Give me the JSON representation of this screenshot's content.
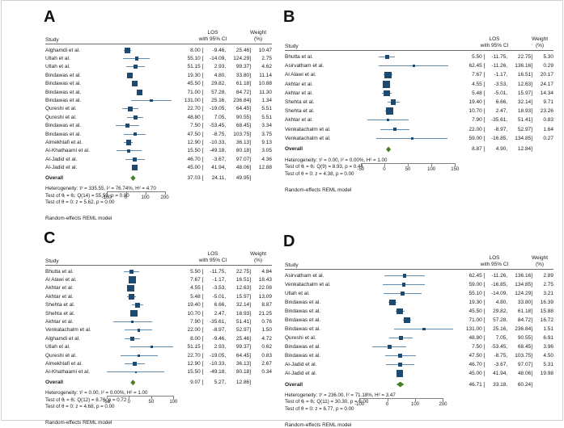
{
  "colors": {
    "square": "#1c4a70",
    "ci_line": "#5f8cb0",
    "diamond": "#4a7e26",
    "rule": "#6a6a6a",
    "frame": "#d2d2d2"
  },
  "chart_data": [
    {
      "panel_label": "A",
      "type": "forest",
      "col_headers": {
        "study": "Study",
        "effect_line1": "LOS",
        "effect_line2": "with 95% CI",
        "weight_line1": "Weight",
        "weight_line2": "(%)"
      },
      "x_ticks": [
        -100,
        0,
        100,
        200
      ],
      "x_range": [
        -115,
        252
      ],
      "studies": [
        {
          "label": "Alghamdi et al.",
          "est": 8.0,
          "lo": -9.46,
          "hi": 25.46,
          "weight": 10.47
        },
        {
          "label": "Ullah et al.",
          "est": 55.1,
          "lo": -14.09,
          "hi": 124.29,
          "weight": 2.75
        },
        {
          "label": "Ullah et al.",
          "est": 51.15,
          "lo": 2.93,
          "hi": 99.37,
          "weight": 4.62
        },
        {
          "label": "Bindawas et al.",
          "est": 19.3,
          "lo": 4.8,
          "hi": 33.8,
          "weight": 11.14
        },
        {
          "label": "Bindawas et al.",
          "est": 45.5,
          "lo": 29.82,
          "hi": 61.18,
          "weight": 10.88
        },
        {
          "label": "Bindawas et al.",
          "est": 71.0,
          "lo": 57.28,
          "hi": 84.72,
          "weight": 11.3
        },
        {
          "label": "Bindawas et al.",
          "est": 131.0,
          "lo": 25.16,
          "hi": 236.84,
          "weight": 1.34
        },
        {
          "label": "Qureshi et al.",
          "est": 22.7,
          "lo": -19.05,
          "hi": 64.45,
          "weight": 5.51
        },
        {
          "label": "Qureshi et al.",
          "est": 48.8,
          "lo": 7.05,
          "hi": 90.55,
          "weight": 5.51
        },
        {
          "label": "Bindawas et al.",
          "est": 7.5,
          "lo": -53.45,
          "hi": 68.45,
          "weight": 3.34
        },
        {
          "label": "Bindawas et al.",
          "est": 47.5,
          "lo": -8.75,
          "hi": 103.75,
          "weight": 3.75
        },
        {
          "label": "Almekhlafi et al.",
          "est": 12.9,
          "lo": -10.33,
          "hi": 36.13,
          "weight": 9.13
        },
        {
          "label": "Al-Khathaami et al.",
          "est": 15.5,
          "lo": -49.18,
          "hi": 80.18,
          "weight": 3.05
        },
        {
          "label": "Al-Jadid et al.",
          "est": 46.7,
          "lo": -3.67,
          "hi": 97.07,
          "weight": 4.36
        },
        {
          "label": "Al-Jadid et al.",
          "est": 45.0,
          "lo": 41.94,
          "hi": 48.06,
          "weight": 12.88
        }
      ],
      "overall": {
        "label": "Overall",
        "est": 37.03,
        "lo": 24.11,
        "hi": 49.95
      },
      "stats": [
        "Heterogeneity: τ² = 335.55, I² = 76.74%, H² = 4.70",
        "Test of θᵢ = θⱼ: Q(14) = 55.59, p = 0.00",
        "Test of θ = 0: z = 5.62, p = 0.00"
      ],
      "footnote": "Random-effects REML model"
    },
    {
      "panel_label": "B",
      "type": "forest",
      "col_headers": {
        "study": "Study",
        "effect_line1": "LOS",
        "effect_line2": "with 95% CI",
        "weight_line1": "Weight",
        "weight_line2": "(%)"
      },
      "x_ticks": [
        -50,
        0,
        50,
        100,
        150
      ],
      "x_range": [
        -60,
        153
      ],
      "studies": [
        {
          "label": "Bhutta et al.",
          "est": 5.5,
          "lo": -11.75,
          "hi": 22.75,
          "weight": 5.3
        },
        {
          "label": "Asirvatham et al.",
          "est": 62.45,
          "lo": -11.26,
          "hi": 136.16,
          "weight": 0.29
        },
        {
          "label": "Al Alawi et al.",
          "est": 7.67,
          "lo": -1.17,
          "hi": 16.51,
          "weight": 20.17
        },
        {
          "label": "Akhtar et al.",
          "est": 4.55,
          "lo": -3.53,
          "hi": 12.63,
          "weight": 24.17
        },
        {
          "label": "Akhtar et al.",
          "est": 5.48,
          "lo": -5.01,
          "hi": 15.97,
          "weight": 14.34
        },
        {
          "label": "Shehta et al.",
          "est": 19.4,
          "lo": 6.66,
          "hi": 32.14,
          "weight": 9.71
        },
        {
          "label": "Shehta et al.",
          "est": 10.7,
          "lo": 2.47,
          "hi": 18.93,
          "weight": 23.26
        },
        {
          "label": "Akhtar et al.",
          "est": 7.9,
          "lo": -35.61,
          "hi": 51.41,
          "weight": 0.83
        },
        {
          "label": "Venkatachalm et al.",
          "est": 22.0,
          "lo": -8.97,
          "hi": 52.97,
          "weight": 1.64
        },
        {
          "label": "Venkatachalm et al.",
          "est": 59.0,
          "lo": -16.85,
          "hi": 134.85,
          "weight": 0.27
        }
      ],
      "overall": {
        "label": "Overall",
        "est": 8.87,
        "lo": 4.9,
        "hi": 12.84
      },
      "stats": [
        "Heterogeneity: τ² = 0.00, I² = 0.00%, H² = 1.00",
        "Test of θᵢ = θⱼ: Q(9) = 8.93, p = 0.44",
        "Test of θ = 0: z = 4.38, p = 0.00"
      ],
      "footnote": "Random-effects REML model"
    },
    {
      "panel_label": "C",
      "type": "forest",
      "col_headers": {
        "study": "Study",
        "effect_line1": "LOS",
        "effect_line2": "with 95% CI",
        "weight_line1": "Weight",
        "weight_line2": "(%)"
      },
      "x_ticks": [
        -50,
        0,
        50,
        100
      ],
      "x_range": [
        -57,
        103
      ],
      "studies": [
        {
          "label": "Bhutta et al.",
          "est": 5.5,
          "lo": -11.75,
          "hi": 22.75,
          "weight": 4.84
        },
        {
          "label": "Al Alawi et al.",
          "est": 7.67,
          "lo": -1.17,
          "hi": 16.51,
          "weight": 18.43
        },
        {
          "label": "Akhtar et al.",
          "est": 4.55,
          "lo": -3.53,
          "hi": 12.63,
          "weight": 22.08
        },
        {
          "label": "Akhtar et al.",
          "est": 5.48,
          "lo": -5.01,
          "hi": 15.97,
          "weight": 13.09
        },
        {
          "label": "Shehta et al.",
          "est": 19.4,
          "lo": 6.66,
          "hi": 32.14,
          "weight": 8.87
        },
        {
          "label": "Shehta et al.",
          "est": 10.7,
          "lo": 2.47,
          "hi": 18.93,
          "weight": 21.25
        },
        {
          "label": "Akhtar et al.",
          "est": 7.9,
          "lo": -35.61,
          "hi": 51.41,
          "weight": 0.76
        },
        {
          "label": "Venkatachalm et al.",
          "est": 22.0,
          "lo": -8.97,
          "hi": 52.97,
          "weight": 1.5
        },
        {
          "label": "Alghamdi et al.",
          "est": 8.0,
          "lo": -9.46,
          "hi": 25.46,
          "weight": 4.72
        },
        {
          "label": "Ullah et al.",
          "est": 51.15,
          "lo": 2.93,
          "hi": 99.37,
          "weight": 0.62
        },
        {
          "label": "Qureshi et al.",
          "est": 22.7,
          "lo": -19.05,
          "hi": 64.45,
          "weight": 0.83
        },
        {
          "label": "Almekhlafi et al.",
          "est": 12.9,
          "lo": -10.33,
          "hi": 36.13,
          "weight": 2.67
        },
        {
          "label": "Al-Khathaami et al.",
          "est": 15.5,
          "lo": -49.18,
          "hi": 80.18,
          "weight": 0.34
        }
      ],
      "overall": {
        "label": "Overall",
        "est": 9.07,
        "lo": 5.27,
        "hi": 12.86
      },
      "stats": [
        "Heterogeneity: τ² = 0.00, I² = 0.00%, H² = 1.00",
        "Test of θᵢ = θⱼ: Q(12) = 8.76, p = 0.72",
        "Test of θ = 0: z = 4.68, p = 0.00"
      ],
      "footnote": "Random-effects REML model"
    },
    {
      "panel_label": "D",
      "type": "forest",
      "col_headers": {
        "study": "Study",
        "effect_line1": "LOS",
        "effect_line2": "with 95% CI",
        "weight_line1": "Weight",
        "weight_line2": "(%)"
      },
      "x_ticks": [
        -100,
        0,
        100,
        200
      ],
      "x_range": [
        -112,
        248
      ],
      "studies": [
        {
          "label": "Asirvatham et al.",
          "est": 62.45,
          "lo": -11.26,
          "hi": 136.16,
          "weight": 2.89
        },
        {
          "label": "Venkatachalm et al.",
          "est": 59.0,
          "lo": -16.85,
          "hi": 134.85,
          "weight": 2.75
        },
        {
          "label": "Ullah et al.",
          "est": 55.1,
          "lo": -14.09,
          "hi": 124.29,
          "weight": 3.21
        },
        {
          "label": "Bindawas et al.",
          "est": 19.3,
          "lo": 4.8,
          "hi": 33.8,
          "weight": 16.39
        },
        {
          "label": "Bindawas et al.",
          "est": 45.5,
          "lo": 29.82,
          "hi": 61.18,
          "weight": 15.88
        },
        {
          "label": "Bindawas et al.",
          "est": 71.0,
          "lo": 57.28,
          "hi": 84.72,
          "weight": 16.72
        },
        {
          "label": "Bindawas et al.",
          "est": 131.0,
          "lo": 25.16,
          "hi": 236.84,
          "weight": 1.51
        },
        {
          "label": "Qureshi et al.",
          "est": 48.8,
          "lo": 7.05,
          "hi": 90.55,
          "weight": 6.91
        },
        {
          "label": "Bindawas et al.",
          "est": 7.5,
          "lo": -53.45,
          "hi": 68.45,
          "weight": 3.96
        },
        {
          "label": "Bindawas et al.",
          "est": 47.5,
          "lo": -8.75,
          "hi": 103.75,
          "weight": 4.5
        },
        {
          "label": "Al-Jadid et al.",
          "est": 46.7,
          "lo": -3.67,
          "hi": 97.07,
          "weight": 5.31
        },
        {
          "label": "Al-Jadid et al.",
          "est": 45.0,
          "lo": 41.94,
          "hi": 48.06,
          "weight": 19.98
        }
      ],
      "overall": {
        "label": "Overall",
        "est": 46.71,
        "lo": 33.18,
        "hi": 60.24
      },
      "stats": [
        "Heterogeneity: τ² = 236.00, I² = 71.18%, H² = 3.47",
        "Test of θᵢ = θⱼ: Q(11) = 30.30, p = 0.00",
        "Test of θ = 0: z = 6.77, p = 0.00"
      ],
      "footnote": "Random-effects REML model"
    }
  ]
}
